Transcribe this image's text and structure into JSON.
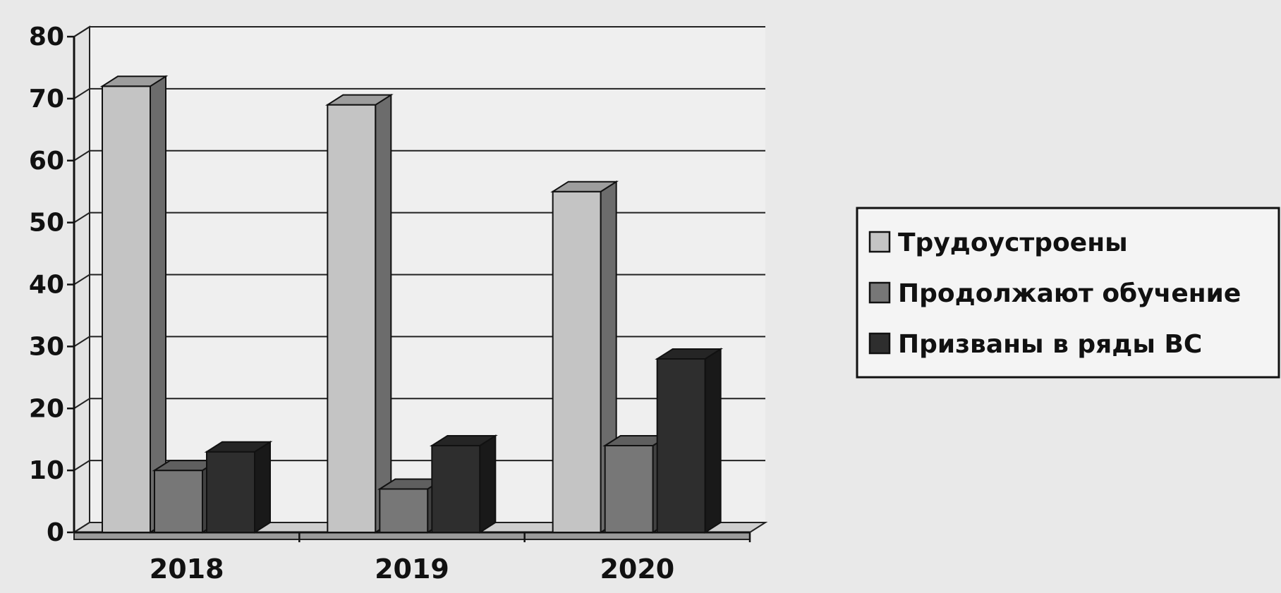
{
  "chart_data": {
    "type": "bar",
    "style": "3d-column",
    "categories": [
      "2018",
      "2019",
      "2020"
    ],
    "series": [
      {
        "name": "Трудоустроены",
        "values": [
          72,
          69,
          55
        ],
        "color": "#c4c4c4"
      },
      {
        "name": "Продолжают обучение",
        "values": [
          10,
          7,
          14
        ],
        "color": "#777777"
      },
      {
        "name": "Призваны в ряды ВС",
        "values": [
          13,
          14,
          28
        ],
        "color": "#2e2e2e"
      }
    ],
    "yticks": [
      0,
      10,
      20,
      30,
      40,
      50,
      60,
      70,
      80
    ],
    "ylim": [
      0,
      80
    ],
    "grid": true,
    "legend_position": "right"
  }
}
